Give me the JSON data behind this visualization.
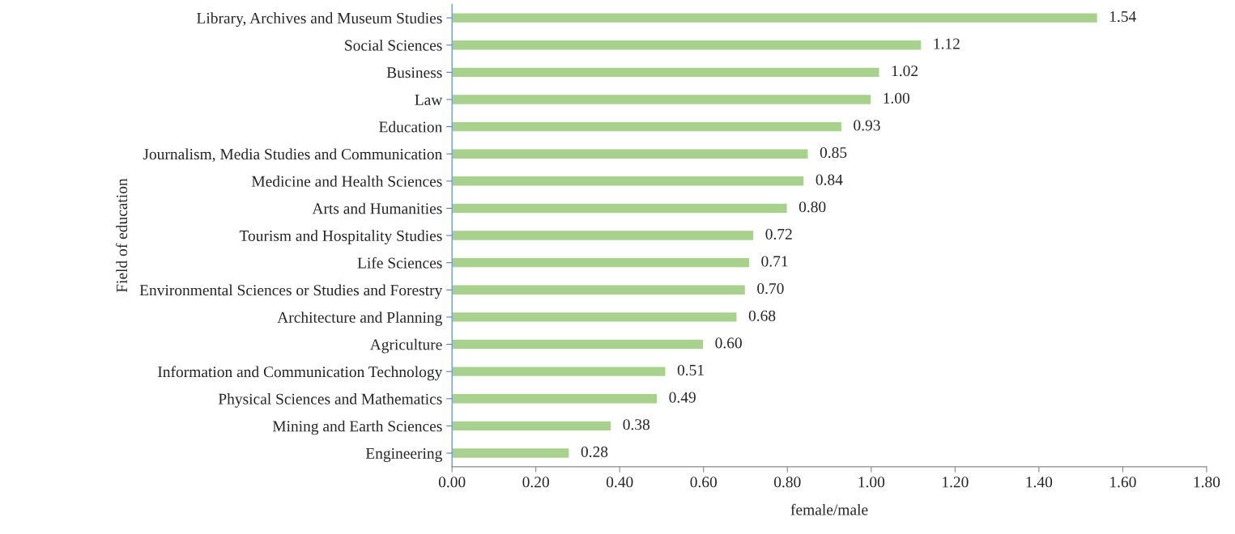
{
  "chart_data": {
    "type": "bar",
    "orientation": "horizontal",
    "xlabel": "female/male",
    "ylabel": "Field of education",
    "categories": [
      "Library, Archives and Museum Studies",
      "Social Sciences",
      "Business",
      "Law",
      "Education",
      "Journalism, Media Studies and Communication",
      "Medicine and Health Sciences",
      "Arts and Humanities",
      "Tourism and Hospitality Studies",
      "Life Sciences",
      "Environmental Sciences or Studies and Forestry",
      "Architecture and Planning",
      "Agriculture",
      "Information and Communication Technology",
      "Physical Sciences and Mathematics",
      "Mining and Earth Sciences",
      "Engineering"
    ],
    "values": [
      1.54,
      1.12,
      1.02,
      1.0,
      0.93,
      0.85,
      0.84,
      0.8,
      0.72,
      0.71,
      0.7,
      0.68,
      0.6,
      0.51,
      0.49,
      0.38,
      0.28
    ],
    "value_labels": [
      "1.54",
      "1.12",
      "1.02",
      "1.00",
      "0.93",
      "0.85",
      "0.84",
      "0.80",
      "0.72",
      "0.71",
      "0.70",
      "0.68",
      "0.60",
      "0.51",
      "0.49",
      "0.38",
      "0.28"
    ],
    "color": "#a9d18e",
    "xlim": [
      0,
      1.8
    ],
    "xticks": [
      {
        "value": 0,
        "label": "0.00"
      },
      {
        "value": 0.2,
        "label": "0.20"
      },
      {
        "value": 0.4,
        "label": "0.40"
      },
      {
        "value": 0.6,
        "label": "0.60"
      },
      {
        "value": 0.8,
        "label": "0.80"
      },
      {
        "value": 1.0,
        "label": "1.00"
      },
      {
        "value": 1.2,
        "label": "1.20"
      },
      {
        "value": 1.4,
        "label": "1.40"
      },
      {
        "value": 1.6,
        "label": "1.60"
      },
      {
        "value": 1.8,
        "label": "1.80"
      }
    ],
    "grid": false,
    "legend": false
  }
}
